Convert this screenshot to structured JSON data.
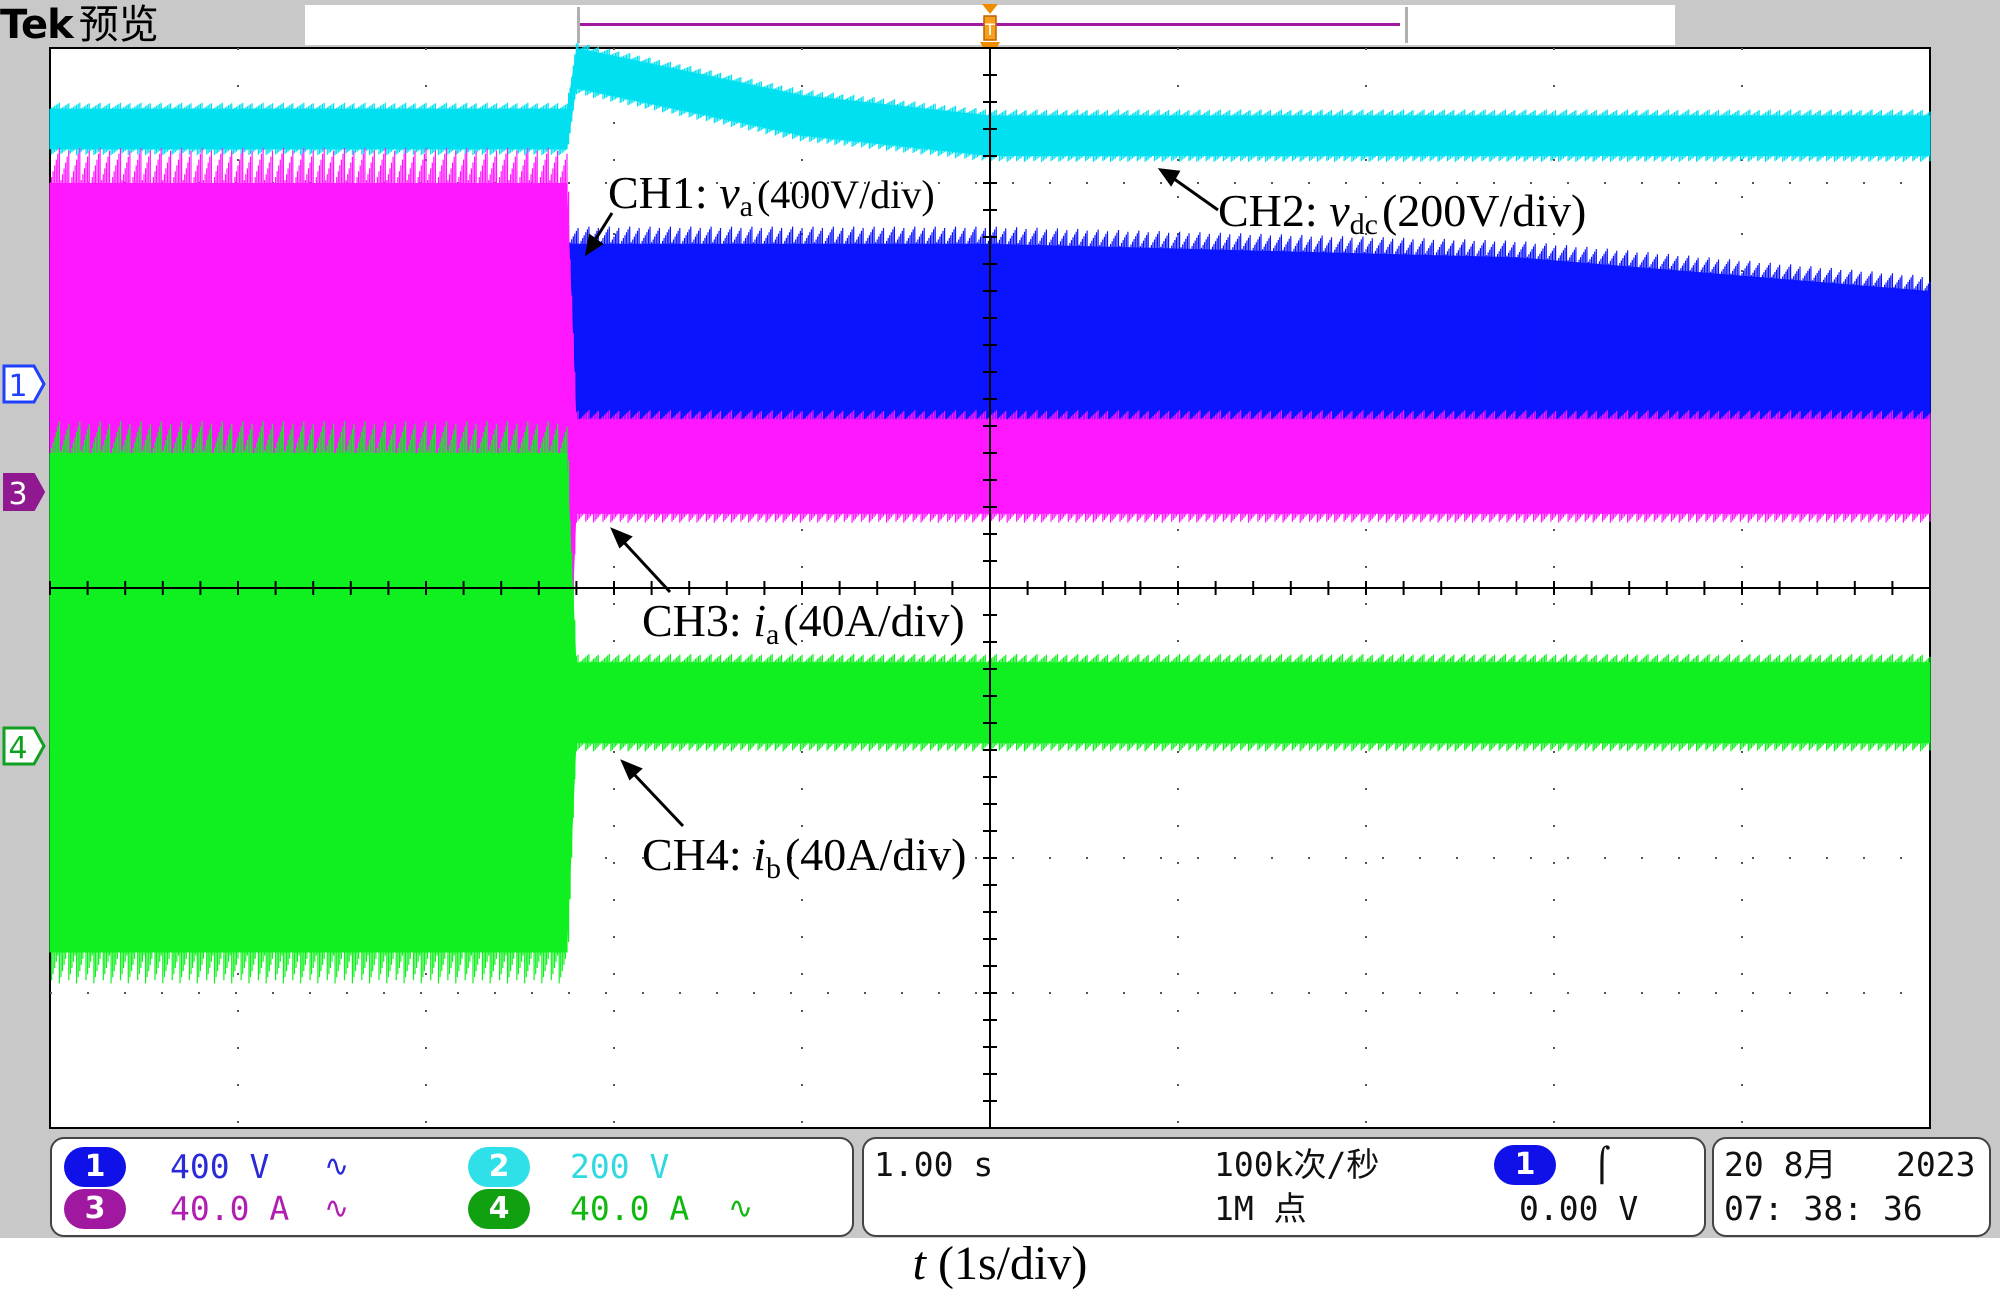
{
  "header": {
    "brand": "Tek",
    "mode": "预览"
  },
  "annotations": {
    "ch1": {
      "prefix": "CH1:  ",
      "var": "v",
      "sub": "a",
      "scale": "(400V/div)"
    },
    "ch2": {
      "prefix": "CH2: ",
      "var": "v",
      "sub": "dc",
      "scale": "(200V/div)"
    },
    "ch3": {
      "prefix": "CH3: ",
      "var": "i",
      "sub": "a",
      "scale": "(40A/div)"
    },
    "ch4": {
      "prefix": "CH4: ",
      "var": "i",
      "sub": "b",
      "scale": "(40A/div)"
    }
  },
  "channel_markers": [
    "1",
    "3",
    "4"
  ],
  "status": {
    "channels": [
      {
        "num": "1",
        "scale": "400 V",
        "coupling": "∿",
        "badge_color": "#1010e8",
        "text_color": "#2a2ad8"
      },
      {
        "num": "2",
        "scale": "200 V",
        "coupling": "",
        "badge_color": "#30e0e8",
        "text_color": "#30d8e0"
      },
      {
        "num": "3",
        "scale": "40.0 A",
        "coupling": "∿",
        "badge_color": "#a018a0",
        "text_color": "#b020b0"
      },
      {
        "num": "4",
        "scale": "40.0 A",
        "coupling": "∿",
        "badge_color": "#10a010",
        "text_color": "#10b810"
      }
    ],
    "timebase": "1.00 s",
    "sample_rate": "100k次/秒",
    "record_length": "1M 点",
    "trigger": {
      "channel": "1",
      "slope": "⌠",
      "level": "0.00 V"
    },
    "date": "20 8月",
    "year": "2023",
    "time": "07: 38: 36"
  },
  "chart_data": {
    "type": "line",
    "title": "",
    "xlabel": "t (1s/div)",
    "x_unit": "s",
    "xlim": [
      -5,
      5
    ],
    "grid": true,
    "grid_divisions": {
      "x": 10,
      "y": 8
    },
    "trigger_time_s": 0,
    "step_time_s": -2.25,
    "series": [
      {
        "name": "CH2: vdc (200V/div)",
        "color": "#00e0f0",
        "volts_per_div": 200,
        "envelope_div": [
          {
            "t": -5.0,
            "lo": 3.25,
            "hi": 3.55
          },
          {
            "t": -2.25,
            "lo": 3.25,
            "hi": 3.55
          },
          {
            "t": -2.2,
            "lo": 3.7,
            "hi": 4.0
          },
          {
            "t": -1.0,
            "lo": 3.35,
            "hi": 3.65
          },
          {
            "t": 0.0,
            "lo": 3.2,
            "hi": 3.5
          },
          {
            "t": 5.0,
            "lo": 3.2,
            "hi": 3.5
          }
        ]
      },
      {
        "name": "CH1: va (400V/div)",
        "color": "#0a14ff",
        "volts_per_div": 400,
        "envelope_div": [
          {
            "t": -5.0,
            "lo": 0.6,
            "hi": 2.55
          },
          {
            "t": -2.25,
            "lo": 0.6,
            "hi": 2.55
          },
          {
            "t": -2.2,
            "lo": 0.75,
            "hi": 2.55
          },
          {
            "t": 0.0,
            "lo": 0.75,
            "hi": 2.55
          },
          {
            "t": 2.8,
            "lo": 0.75,
            "hi": 2.45
          },
          {
            "t": 5.0,
            "lo": 0.75,
            "hi": 2.2
          }
        ]
      },
      {
        "name": "CH3: ia (40A/div)",
        "color": "#ff18ff",
        "amps_per_div": 40,
        "envelope_div": [
          {
            "t": -5.0,
            "lo": -2.1,
            "hi": 2.1
          },
          {
            "t": -2.25,
            "lo": -2.1,
            "hi": 2.1
          },
          {
            "t": -2.2,
            "lo": -0.35,
            "hi": 0.35
          },
          {
            "t": 5.0,
            "lo": -0.35,
            "hi": 0.35
          }
        ]
      },
      {
        "name": "CH4: ib (40A/div)",
        "color": "#10f020",
        "amps_per_div": 40,
        "envelope_div": [
          {
            "t": -5.0,
            "lo": -1.85,
            "hi": 1.85
          },
          {
            "t": -2.25,
            "lo": -1.85,
            "hi": 1.85
          },
          {
            "t": -2.2,
            "lo": -0.3,
            "hi": 0.3
          },
          {
            "t": 5.0,
            "lo": -0.3,
            "hi": 0.3
          }
        ]
      }
    ]
  }
}
